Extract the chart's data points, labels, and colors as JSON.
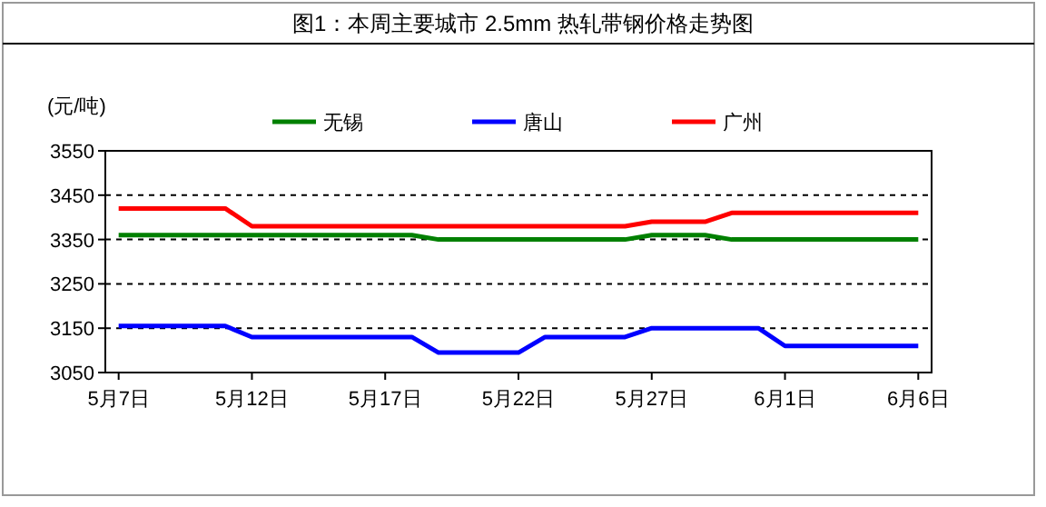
{
  "chart_data": {
    "type": "line",
    "title": "图1：本周主要城市 2.5mm 热轧带钢价格走势图",
    "ylabel": "(元/吨)",
    "categories": [
      "5月7日",
      null,
      null,
      null,
      null,
      "5月12日",
      null,
      null,
      null,
      null,
      "5月17日",
      null,
      null,
      null,
      null,
      "5月22日",
      null,
      null,
      null,
      null,
      "5月27日",
      null,
      null,
      null,
      null,
      "6月1日",
      null,
      null,
      null,
      null,
      "6月6日"
    ],
    "series": [
      {
        "name": "无锡",
        "color": "#008000",
        "values": [
          3360,
          3360,
          3360,
          3360,
          3360,
          3360,
          3360,
          3360,
          3360,
          3360,
          3360,
          3360,
          3350,
          3350,
          3350,
          3350,
          3350,
          3350,
          3350,
          3350,
          3360,
          3360,
          3360,
          3350,
          3350,
          3350,
          3350,
          3350,
          3350,
          3350,
          3350
        ]
      },
      {
        "name": "唐山",
        "color": "#0000ff",
        "values": [
          3155,
          3155,
          3155,
          3155,
          3155,
          3130,
          3130,
          3130,
          3130,
          3130,
          3130,
          3130,
          3095,
          3095,
          3095,
          3095,
          3130,
          3130,
          3130,
          3130,
          3150,
          3150,
          3150,
          3150,
          3150,
          3110,
          3110,
          3110,
          3110,
          3110,
          3110
        ]
      },
      {
        "name": "广州",
        "color": "#ff0000",
        "values": [
          3420,
          3420,
          3420,
          3420,
          3420,
          3380,
          3380,
          3380,
          3380,
          3380,
          3380,
          3380,
          3380,
          3380,
          3380,
          3380,
          3380,
          3380,
          3380,
          3380,
          3390,
          3390,
          3390,
          3410,
          3410,
          3410,
          3410,
          3410,
          3410,
          3410,
          3410
        ]
      }
    ],
    "ylim": [
      3050,
      3550
    ],
    "yticks": [
      3050,
      3150,
      3250,
      3350,
      3450,
      3550
    ],
    "grid": "y",
    "legend": "top"
  }
}
